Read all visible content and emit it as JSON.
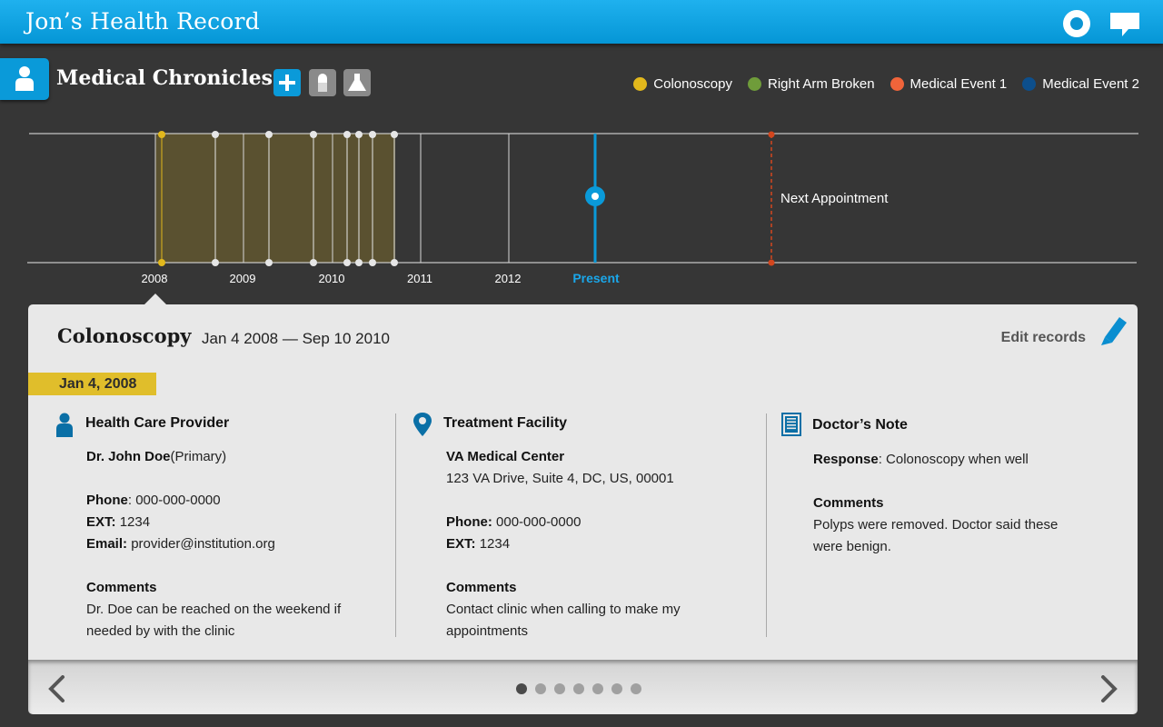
{
  "header": {
    "title": "Jon’s Health Record",
    "accent": "#0a9ad9"
  },
  "section": {
    "title": "Medical Chronicles",
    "tools": [
      "add-icon",
      "pill-icon",
      "flask-icon"
    ]
  },
  "legend": [
    {
      "label": "Colonoscopy",
      "color": "#e2b81c"
    },
    {
      "label": "Right Arm Broken",
      "color": "#6f9c3a"
    },
    {
      "label": "Medical Event 1",
      "color": "#f0643a"
    },
    {
      "label": "Medical Event 2",
      "color": "#0d4f8c"
    }
  ],
  "timeline": {
    "years": [
      "2008",
      "2009",
      "2010",
      "2011",
      "2012"
    ],
    "present_label": "Present",
    "next_label": "Next Appointment"
  },
  "event": {
    "title": "Colonoscopy",
    "range": "Jan 4 2008 — Sep 10 2010",
    "edit_label": "Edit records",
    "date": "Jan 4, 2008"
  },
  "provider": {
    "heading": "Health Care Provider",
    "name": "Dr. John Doe",
    "role": "(Primary)",
    "phone_label": "Phone",
    "phone": "000-000-0000",
    "ext_label": "EXT:",
    "ext": "1234",
    "email_label": "Email:",
    "email": "provider@institution.org",
    "comments_label": "Comments",
    "comments": "Dr. Doe can be reached on the weekend if needed by with the clinic"
  },
  "facility": {
    "heading": "Treatment Facility",
    "name": "VA Medical Center",
    "address": "123 VA Drive, Suite 4, DC, US, 00001",
    "phone_label": "Phone:",
    "phone": "000-000-0000",
    "ext_label": "EXT:",
    "ext": "1234",
    "comments_label": "Comments",
    "comments": "Contact clinic when calling to make my appointments"
  },
  "note": {
    "heading": "Doctor’s Note",
    "response_label": "Response",
    "response": "Colonoscopy when well",
    "comments_label": "Comments",
    "comments": "Polyps were removed. Doctor said these were benign."
  },
  "pager": {
    "total": 7,
    "active": 1
  }
}
